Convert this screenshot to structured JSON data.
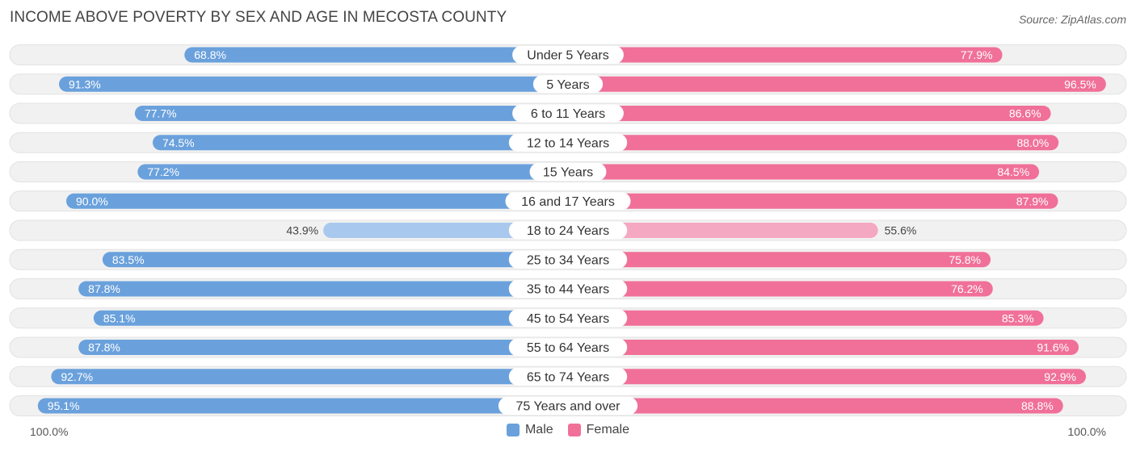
{
  "chart_data": {
    "type": "bar",
    "orientation": "horizontal-diverging",
    "title": "INCOME ABOVE POVERTY BY SEX AND AGE IN MECOSTA COUNTY",
    "source": "Source: ZipAtlas.com",
    "categories": [
      "Under 5 Years",
      "5 Years",
      "6 to 11 Years",
      "12 to 14 Years",
      "15 Years",
      "16 and 17 Years",
      "18 to 24 Years",
      "25 to 34 Years",
      "35 to 44 Years",
      "45 to 54 Years",
      "55 to 64 Years",
      "65 to 74 Years",
      "75 Years and over"
    ],
    "series": [
      {
        "name": "Male",
        "values": [
          68.8,
          91.3,
          77.7,
          74.5,
          77.2,
          90.0,
          43.9,
          83.5,
          87.8,
          85.1,
          87.8,
          92.7,
          95.1
        ],
        "labels": [
          "68.8%",
          "91.3%",
          "77.7%",
          "74.5%",
          "77.2%",
          "90.0%",
          "43.9%",
          "83.5%",
          "87.8%",
          "85.1%",
          "87.8%",
          "92.7%",
          "95.1%"
        ]
      },
      {
        "name": "Female",
        "values": [
          77.9,
          96.5,
          86.6,
          88.0,
          84.5,
          87.9,
          55.6,
          75.8,
          76.2,
          85.3,
          91.6,
          92.9,
          88.8
        ],
        "labels": [
          "77.9%",
          "96.5%",
          "86.6%",
          "88.0%",
          "84.5%",
          "87.9%",
          "55.6%",
          "75.8%",
          "76.2%",
          "85.3%",
          "91.6%",
          "92.9%",
          "88.8%"
        ]
      }
    ],
    "xlim": [
      0,
      100
    ],
    "axis_left_label": "100.0%",
    "axis_right_label": "100.0%",
    "legend": [
      "Male",
      "Female"
    ],
    "legend_position": "bottom-center",
    "colors": {
      "male": "#6aa1dc",
      "male_light": "#a9c8ed",
      "female": "#f07099",
      "female_light": "#f5a8c1",
      "track": "#f1f1f1"
    }
  }
}
